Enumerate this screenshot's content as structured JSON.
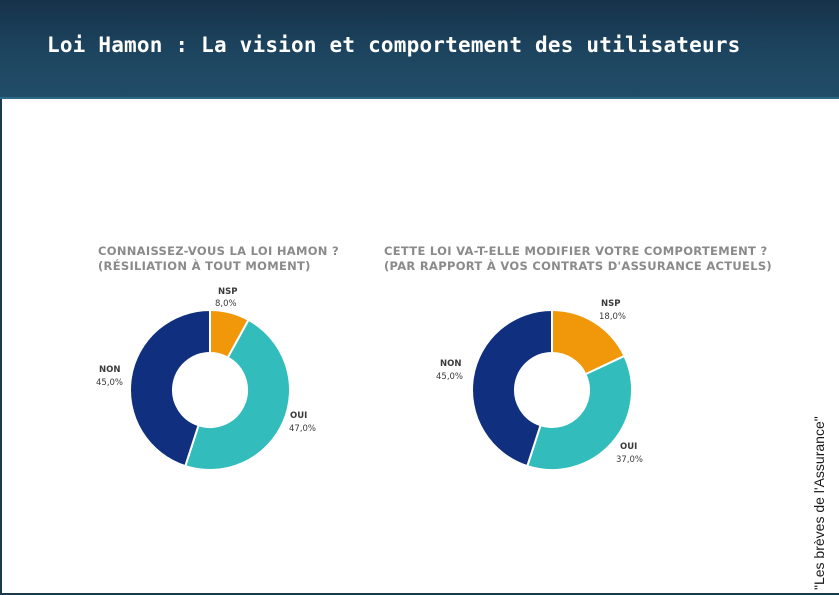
{
  "header": {
    "title": "Loi Hamon : La vision et comportement des utilisateurs"
  },
  "source": "\"Les brèves de l'Assurance\"",
  "colors": {
    "nsp": "#f0970a",
    "oui": "#33bcbc",
    "non": "#10307f"
  },
  "chart_data": [
    {
      "type": "pie",
      "donut": true,
      "title": [
        "CONNAISSEZ-VOUS LA LOI HAMON ?",
        "(RÉSILIATION À TOUT MOMENT)"
      ],
      "slices": [
        {
          "key": "nsp",
          "label": "NSP",
          "value": 8.0,
          "display": "8,0%"
        },
        {
          "key": "oui",
          "label": "OUI",
          "value": 47.0,
          "display": "47,0%"
        },
        {
          "key": "non",
          "label": "NON",
          "value": 45.0,
          "display": "45,0%"
        }
      ]
    },
    {
      "type": "pie",
      "donut": true,
      "title": [
        "CETTE LOI VA-T-ELLE MODIFIER VOTRE COMPORTEMENT ?",
        "(PAR RAPPORT À VOS CONTRATS D'ASSURANCE ACTUELS)"
      ],
      "slices": [
        {
          "key": "nsp",
          "label": "NSP",
          "value": 18.0,
          "display": "18,0%"
        },
        {
          "key": "oui",
          "label": "OUI",
          "value": 37.0,
          "display": "37,0%"
        },
        {
          "key": "non",
          "label": "NON",
          "value": 45.0,
          "display": "45,0%"
        }
      ]
    }
  ]
}
